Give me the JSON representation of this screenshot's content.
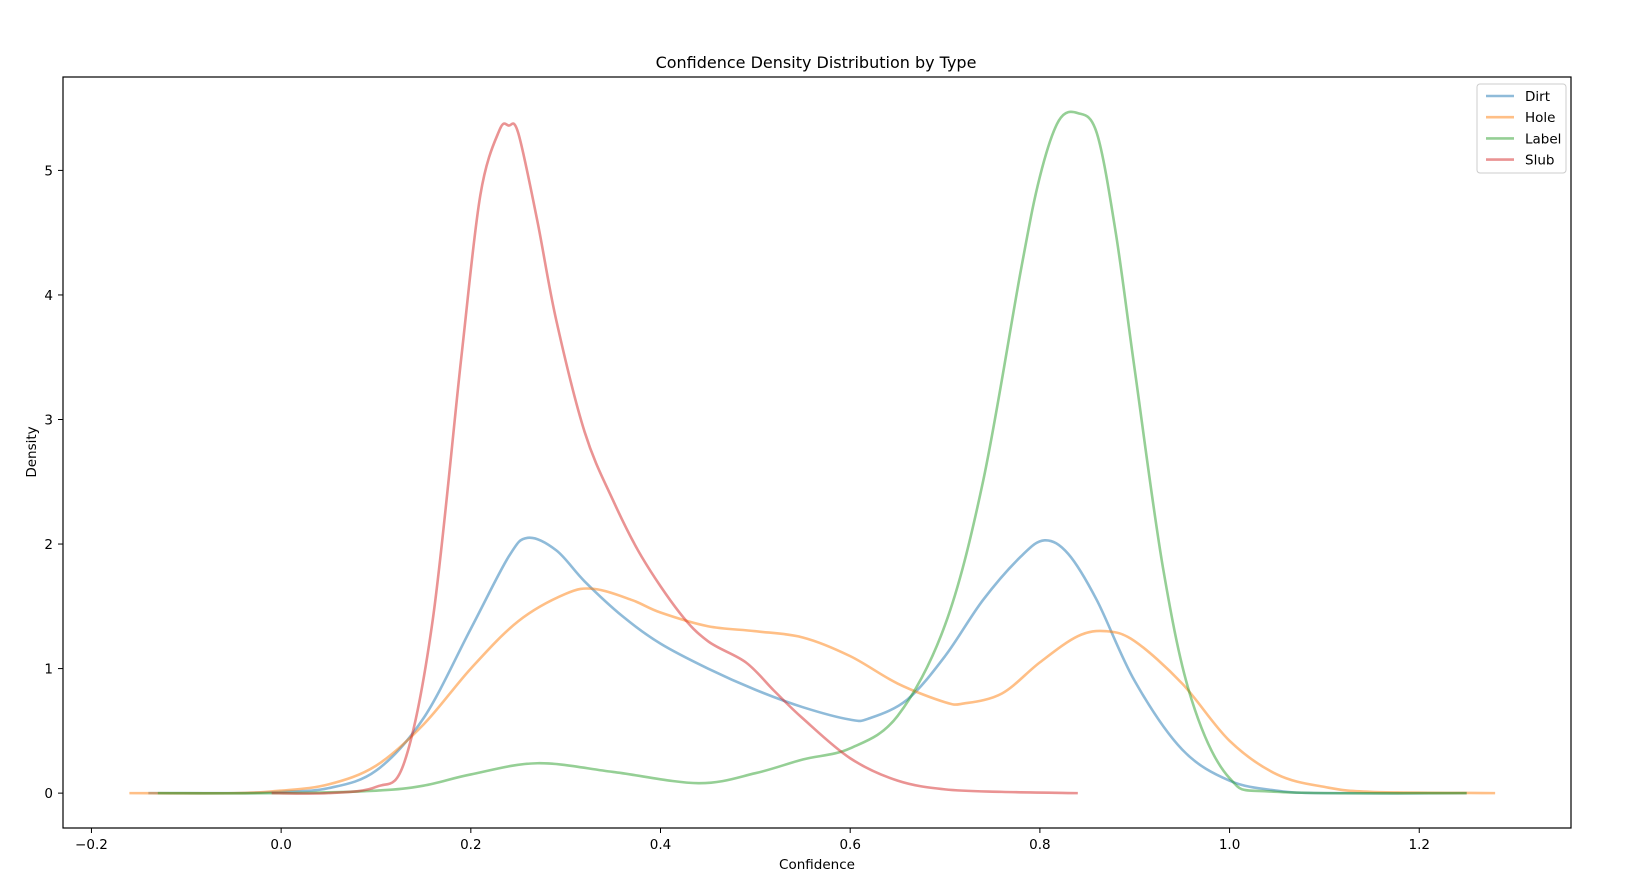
{
  "chart_data": {
    "type": "line",
    "title": "Confidence Density Distribution by Type",
    "xlabel": "Confidence",
    "ylabel": "Density",
    "xlim": [
      -0.23,
      1.36
    ],
    "ylim": [
      -0.28,
      5.75
    ],
    "xticks": [
      {
        "value": -0.2,
        "label": "−0.2"
      },
      {
        "value": 0.0,
        "label": "0.0"
      },
      {
        "value": 0.2,
        "label": "0.2"
      },
      {
        "value": 0.4,
        "label": "0.4"
      },
      {
        "value": 0.6,
        "label": "0.6"
      },
      {
        "value": 0.8,
        "label": "0.8"
      },
      {
        "value": 1.0,
        "label": "1.0"
      },
      {
        "value": 1.2,
        "label": "1.2"
      }
    ],
    "yticks": [
      {
        "value": 0,
        "label": "0"
      },
      {
        "value": 1,
        "label": "1"
      },
      {
        "value": 2,
        "label": "2"
      },
      {
        "value": 3,
        "label": "3"
      },
      {
        "value": 4,
        "label": "4"
      },
      {
        "value": 5,
        "label": "5"
      }
    ],
    "grid": false,
    "legend_position": "top-right",
    "series": [
      {
        "name": "Dirt",
        "color": "#1f77b4",
        "x": [
          -0.14,
          -0.05,
          0.0,
          0.05,
          0.1,
          0.15,
          0.2,
          0.24,
          0.26,
          0.29,
          0.32,
          0.36,
          0.4,
          0.45,
          0.5,
          0.55,
          0.6,
          0.62,
          0.66,
          0.7,
          0.74,
          0.78,
          0.805,
          0.83,
          0.86,
          0.9,
          0.95,
          1.0,
          1.05,
          1.1,
          1.25
        ],
        "y": [
          0,
          0.0,
          0.01,
          0.04,
          0.18,
          0.6,
          1.32,
          1.9,
          2.05,
          1.95,
          1.7,
          1.42,
          1.2,
          1.0,
          0.83,
          0.69,
          0.59,
          0.6,
          0.75,
          1.1,
          1.55,
          1.9,
          2.03,
          1.92,
          1.55,
          0.9,
          0.35,
          0.1,
          0.02,
          0.0,
          0
        ]
      },
      {
        "name": "Hole",
        "color": "#ff7f0e",
        "x": [
          -0.16,
          -0.05,
          0.0,
          0.05,
          0.1,
          0.15,
          0.2,
          0.25,
          0.3,
          0.33,
          0.37,
          0.4,
          0.45,
          0.5,
          0.55,
          0.6,
          0.65,
          0.7,
          0.72,
          0.76,
          0.8,
          0.84,
          0.87,
          0.9,
          0.95,
          1.0,
          1.05,
          1.1,
          1.15,
          1.28
        ],
        "y": [
          0,
          0.0,
          0.02,
          0.07,
          0.22,
          0.55,
          1.0,
          1.38,
          1.6,
          1.64,
          1.55,
          1.45,
          1.34,
          1.3,
          1.25,
          1.1,
          0.88,
          0.73,
          0.72,
          0.8,
          1.05,
          1.26,
          1.3,
          1.22,
          0.88,
          0.42,
          0.15,
          0.05,
          0.01,
          0
        ]
      },
      {
        "name": "Label",
        "color": "#2ca02c",
        "x": [
          -0.13,
          0.0,
          0.1,
          0.15,
          0.2,
          0.27,
          0.35,
          0.44,
          0.5,
          0.55,
          0.6,
          0.65,
          0.7,
          0.74,
          0.78,
          0.8,
          0.82,
          0.84,
          0.86,
          0.88,
          0.9,
          0.93,
          0.96,
          1.0,
          1.05,
          1.25
        ],
        "y": [
          0,
          0.0,
          0.02,
          0.06,
          0.15,
          0.24,
          0.17,
          0.08,
          0.16,
          0.27,
          0.36,
          0.62,
          1.35,
          2.5,
          4.2,
          4.95,
          5.4,
          5.46,
          5.3,
          4.5,
          3.4,
          1.8,
          0.75,
          0.12,
          0.01,
          0
        ]
      },
      {
        "name": "Slub",
        "color": "#d62728",
        "x": [
          -0.01,
          0.05,
          0.1,
          0.13,
          0.16,
          0.19,
          0.21,
          0.23,
          0.24,
          0.25,
          0.27,
          0.29,
          0.32,
          0.35,
          0.38,
          0.42,
          0.45,
          0.49,
          0.52,
          0.55,
          0.6,
          0.65,
          0.7,
          0.76,
          0.84
        ],
        "y": [
          0,
          0.0,
          0.05,
          0.25,
          1.4,
          3.5,
          4.8,
          5.32,
          5.36,
          5.3,
          4.6,
          3.8,
          2.9,
          2.35,
          1.9,
          1.45,
          1.22,
          1.05,
          0.82,
          0.6,
          0.28,
          0.1,
          0.03,
          0.01,
          0
        ]
      }
    ]
  }
}
